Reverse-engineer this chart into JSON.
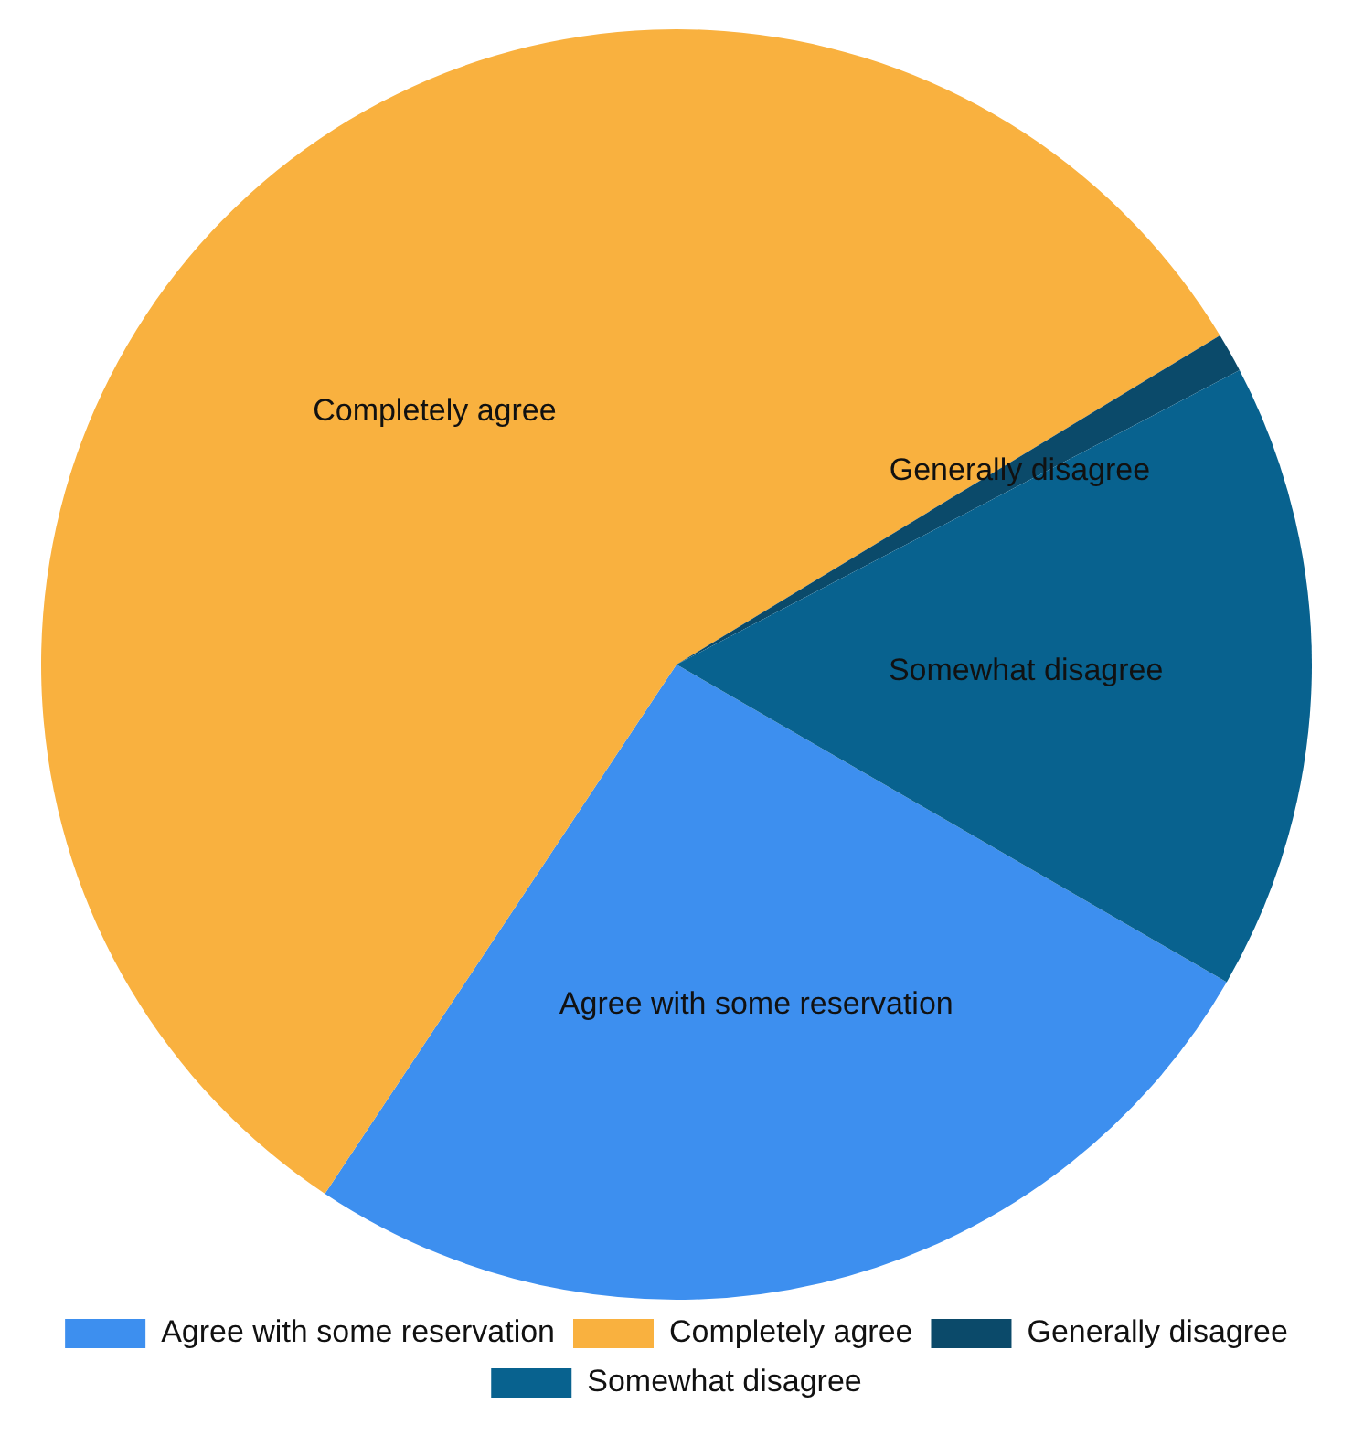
{
  "chart_data": {
    "type": "pie",
    "categories": [
      "Agree with some reservation",
      "Completely agree",
      "Generally disagree",
      "Somewhat disagree"
    ],
    "values": [
      26,
      57,
      1,
      16
    ],
    "colors": [
      "#3d8fef",
      "#f9b13f",
      "#0b4a6a",
      "#08628f"
    ],
    "legend": "bottom"
  }
}
